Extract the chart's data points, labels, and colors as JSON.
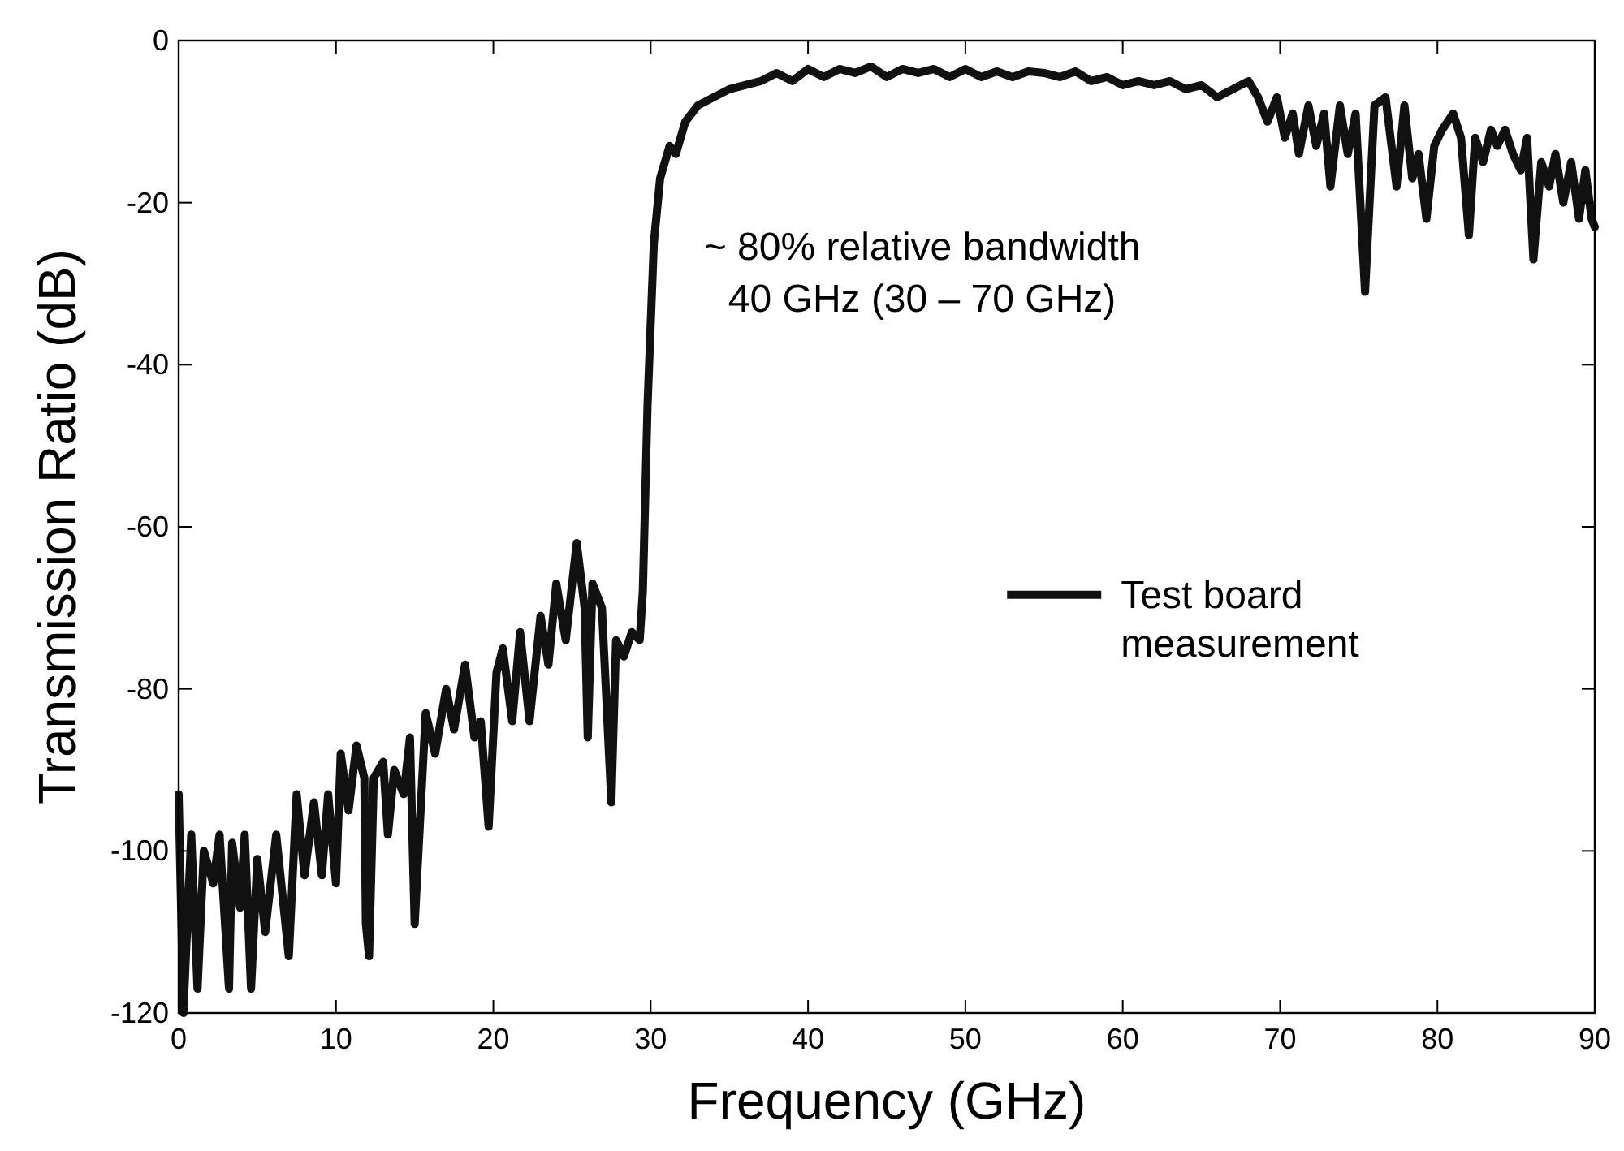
{
  "chart_data": {
    "type": "line",
    "xlabel": "Frequency (GHz)",
    "ylabel": "Transmission Ratio (dB)",
    "xlim": [
      0,
      90
    ],
    "xticks": [
      0,
      10,
      20,
      30,
      40,
      50,
      60,
      70,
      80,
      90
    ],
    "ylim": [
      -120,
      0
    ],
    "yticks": [
      -120,
      -100,
      -80,
      -60,
      -40,
      -20,
      0
    ],
    "legend": "right",
    "grid": false,
    "annotations": [
      "~ 80% relative bandwidth",
      "40 GHz (30 – 70 GHz)"
    ],
    "series": [
      {
        "name": "Test board measurement",
        "color": "#111111",
        "x": [
          0,
          0.3,
          0.8,
          1.2,
          1.6,
          2.2,
          2.6,
          3.2,
          3.4,
          3.9,
          4.2,
          4.6,
          5.0,
          5.5,
          6.2,
          7.0,
          7.5,
          8.0,
          8.6,
          9.1,
          9.5,
          10.0,
          10.3,
          10.8,
          11.3,
          11.8,
          11.9,
          12.1,
          12.4,
          13.0,
          13.3,
          13.7,
          14.3,
          14.7,
          15.0,
          15.7,
          16.3,
          17.0,
          17.5,
          18.2,
          18.8,
          19.2,
          19.7,
          20.2,
          20.6,
          21.2,
          21.7,
          22.3,
          23.0,
          23.5,
          24.0,
          24.6,
          25.3,
          25.8,
          26.0,
          26.3,
          26.9,
          27.5,
          27.8,
          28.3,
          28.8,
          29.3,
          29.5,
          29.8,
          30.2,
          30.6,
          31.2,
          31.6,
          32.2,
          33,
          34,
          35,
          36,
          37,
          38,
          39,
          40,
          41,
          42,
          43,
          44,
          45,
          46,
          47,
          48,
          49,
          50,
          51,
          52,
          53,
          54,
          55,
          56,
          57,
          58,
          59,
          60,
          61,
          62,
          63,
          64,
          65,
          66,
          67,
          68,
          68.6,
          69.2,
          69.8,
          70.3,
          70.8,
          71.2,
          71.8,
          72.3,
          72.8,
          73.2,
          73.8,
          74.3,
          74.8,
          75.4,
          76.0,
          76.7,
          77.4,
          77.9,
          78.4,
          78.8,
          79.3,
          79.8,
          80.3,
          81.0,
          81.5,
          82.0,
          82.4,
          82.9,
          83.4,
          83.8,
          84.3,
          84.8,
          85.3,
          85.7,
          86.1,
          86.6,
          87.1,
          87.5,
          88.0,
          88.5,
          89.0,
          89.4,
          89.8,
          90
        ],
        "values": [
          -93,
          -120,
          -98,
          -117,
          -100,
          -104,
          -98,
          -117,
          -99,
          -107,
          -98,
          -117,
          -101,
          -110,
          -98,
          -113,
          -93,
          -103,
          -94,
          -103,
          -93,
          -104,
          -88,
          -95,
          -87,
          -91,
          -109,
          -113,
          -91,
          -89,
          -98,
          -90,
          -93,
          -86,
          -109,
          -83,
          -88,
          -80,
          -85,
          -77,
          -86,
          -84,
          -97,
          -78,
          -75,
          -84,
          -73,
          -84,
          -71,
          -77,
          -67,
          -74,
          -62,
          -70,
          -86,
          -67,
          -70,
          -94,
          -74,
          -76,
          -73,
          -74,
          -68,
          -45,
          -25,
          -17,
          -13,
          -14,
          -10,
          -8,
          -7,
          -6,
          -5.5,
          -5,
          -4,
          -5,
          -3.5,
          -4.5,
          -3.5,
          -4,
          -3.2,
          -4.5,
          -3.5,
          -4,
          -3.5,
          -4.5,
          -3.5,
          -4.5,
          -3.8,
          -4.5,
          -3.8,
          -4,
          -4.5,
          -3.8,
          -5,
          -4.5,
          -5.5,
          -5,
          -5.5,
          -5,
          -6,
          -5.5,
          -7,
          -6,
          -5,
          -7,
          -10,
          -7,
          -12,
          -9,
          -14,
          -8,
          -13,
          -9,
          -18,
          -8,
          -14,
          -9,
          -31,
          -8,
          -7,
          -18,
          -8,
          -17,
          -14,
          -22,
          -13,
          -11,
          -9,
          -12,
          -24,
          -12,
          -15,
          -11,
          -13,
          -11,
          -14,
          -16,
          -12,
          -27,
          -15,
          -18,
          -14,
          -20,
          -15,
          -22,
          -16,
          -22,
          -23
        ]
      }
    ]
  }
}
